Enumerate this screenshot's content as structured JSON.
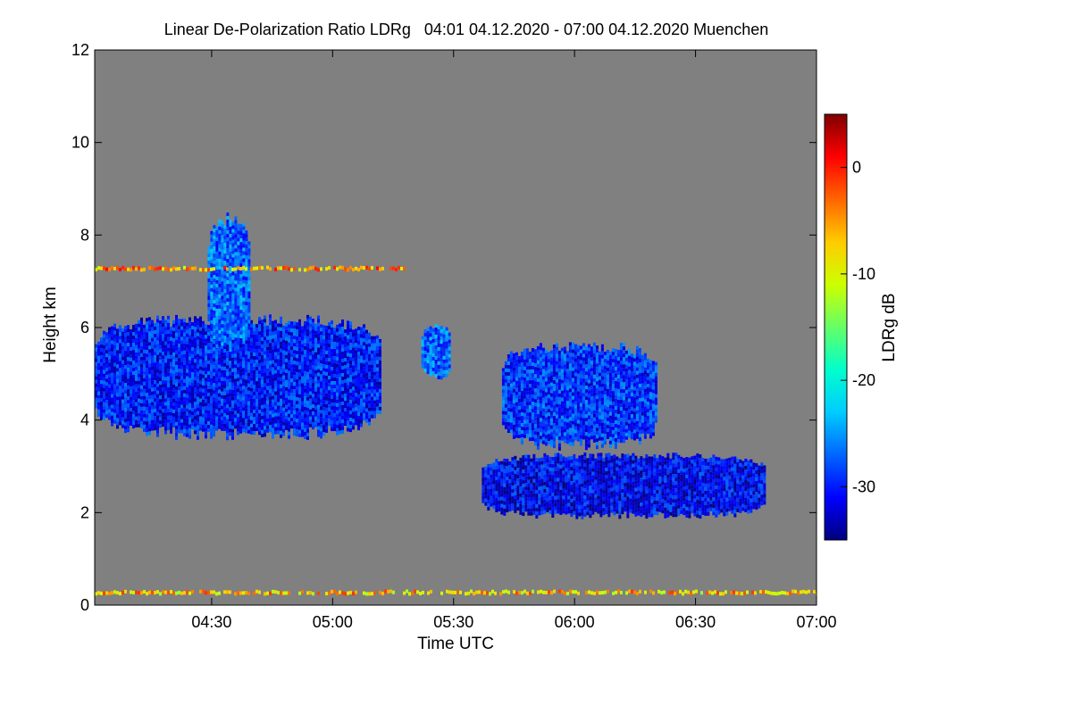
{
  "chart_data": {
    "type": "heatmap",
    "title": "Linear De-Polarization Ratio LDRg   04:01 04.12.2020 - 07:00 04.12.2020 Muenchen",
    "xlabel": "Time UTC",
    "ylabel": "Height km",
    "xlim_minutes_utc": [
      241,
      420
    ],
    "ylim": [
      0,
      12
    ],
    "x_ticks": [
      {
        "label": "04:30",
        "minutes": 270
      },
      {
        "label": "05:00",
        "minutes": 300
      },
      {
        "label": "05:30",
        "minutes": 330
      },
      {
        "label": "06:00",
        "minutes": 360
      },
      {
        "label": "06:30",
        "minutes": 390
      },
      {
        "label": "07:00",
        "minutes": 420
      }
    ],
    "y_ticks": [
      0,
      2,
      4,
      6,
      8,
      10,
      12
    ],
    "background_color": "#808080",
    "colorbar": {
      "label": "LDRg dB",
      "range": [
        -35,
        5
      ],
      "ticks": [
        0,
        -10,
        -20,
        -30
      ],
      "colors": [
        "#00007f",
        "#0000ff",
        "#0066ff",
        "#00ccff",
        "#00ffcc",
        "#66ff66",
        "#ccff00",
        "#ffcc00",
        "#ff6600",
        "#ff0000",
        "#7f0000"
      ]
    },
    "features": [
      {
        "name": "cloud layer A",
        "time_start": "04:01",
        "time_end": "05:12",
        "height_bottom_km": 3.6,
        "height_top_km": 6.3,
        "ldr_db": -30
      },
      {
        "name": "fall streak",
        "time_start": "04:29",
        "time_end": "04:39",
        "height_bottom_km": 5.5,
        "height_top_km": 8.5,
        "ldr_db": -27
      },
      {
        "name": "cloud patch",
        "time_start": "05:22",
        "time_end": "05:29",
        "height_bottom_km": 4.9,
        "height_top_km": 6.1,
        "ldr_db": -27
      },
      {
        "name": "cloud layer B upper",
        "time_start": "05:42",
        "time_end": "06:20",
        "height_bottom_km": 3.4,
        "height_top_km": 5.7,
        "ldr_db": -29
      },
      {
        "name": "cloud layer B lower",
        "time_start": "05:37",
        "time_end": "06:47",
        "height_bottom_km": 1.9,
        "height_top_km": 3.3,
        "ldr_db": -31
      },
      {
        "name": "aerosol layer",
        "time_start": "04:01",
        "time_end": "05:18",
        "height_bottom_km": 7.3,
        "height_top_km": 7.3,
        "ldr_db": -5
      },
      {
        "name": "near-surface layer",
        "time_start": "04:01",
        "time_end": "07:00",
        "height_bottom_km": 0.2,
        "height_top_km": 0.3,
        "ldr_db": -7
      }
    ]
  }
}
